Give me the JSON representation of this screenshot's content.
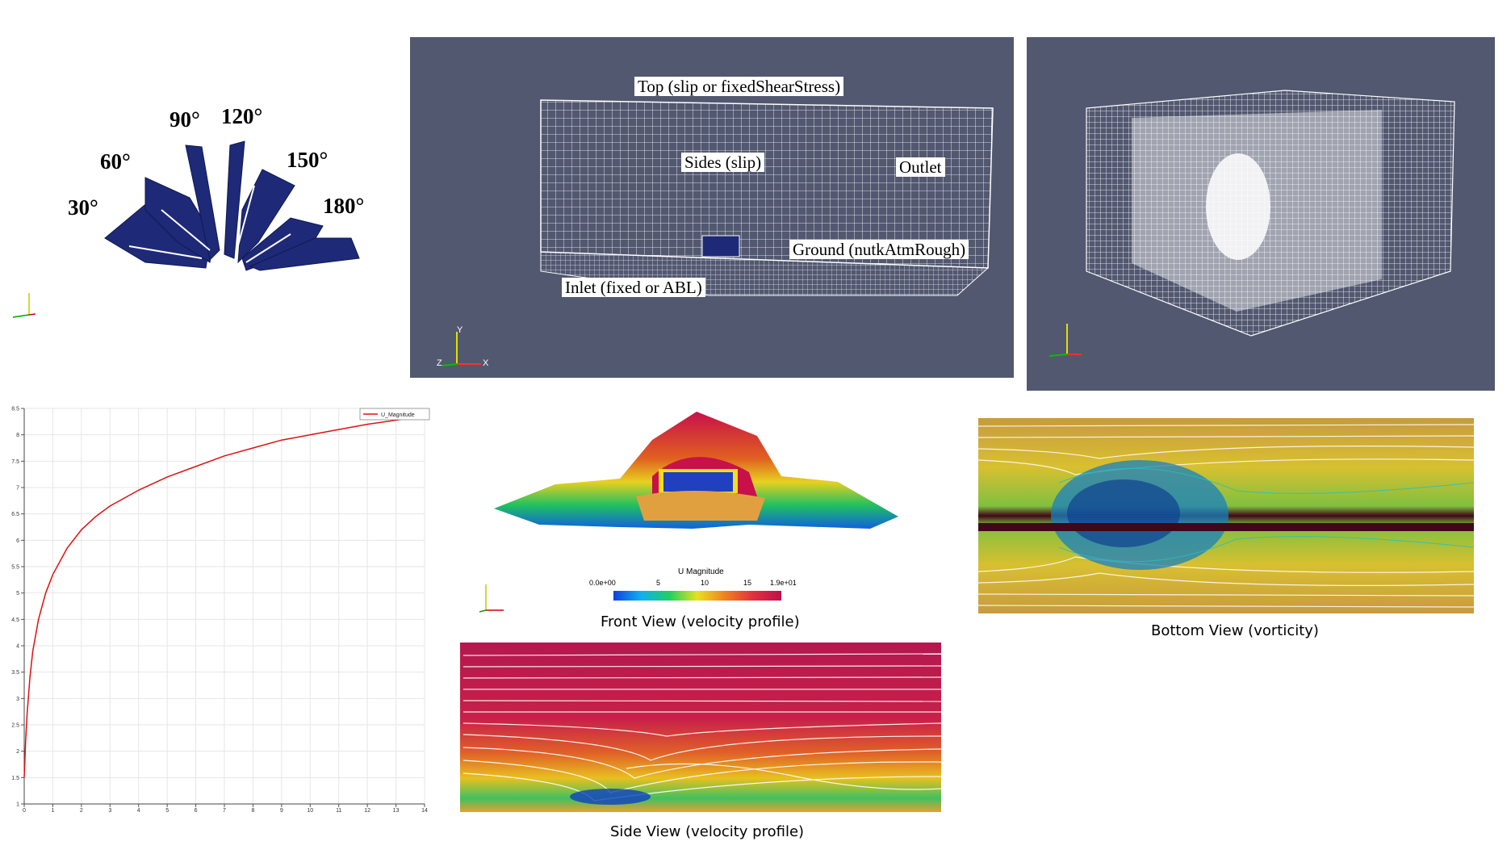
{
  "fan": {
    "angles": [
      "30°",
      "60°",
      "90°",
      "120°",
      "150°",
      "180°"
    ],
    "color": "#1e2a78"
  },
  "mesh": {
    "labels": {
      "top": "Top (slip or fixedShearStress)",
      "sides": "Sides (slip)",
      "outlet": "Outlet",
      "ground": "Ground (nutkAtmRough)",
      "inlet": "Inlet (fixed or ABL)"
    },
    "axes": {
      "y": "Y",
      "z": "Z",
      "x": "X"
    },
    "background": "#525870"
  },
  "profile_plot": {
    "legend": "U_Magnitude",
    "line_color": "#e01010"
  },
  "chart_data": {
    "type": "line",
    "title": "",
    "xlabel": "",
    "ylabel": "",
    "xlim": [
      0,
      14
    ],
    "ylim": [
      1,
      8.5
    ],
    "x_ticks": [
      "0",
      "1",
      "2",
      "3",
      "4",
      "5",
      "6",
      "7",
      "8",
      "9",
      "10",
      "11",
      "12",
      "13",
      "14"
    ],
    "y_ticks": [
      "1",
      "1.5",
      "2",
      "2.5",
      "3",
      "3.5",
      "4",
      "4.5",
      "5",
      "5.5",
      "6",
      "6.5",
      "7",
      "7.5",
      "8",
      "8.5"
    ],
    "grid": true,
    "legend_position": "top-right",
    "series": [
      {
        "name": "U_Magnitude",
        "x": [
          0.0,
          0.05,
          0.1,
          0.2,
          0.3,
          0.5,
          0.75,
          1,
          1.5,
          2,
          2.5,
          3,
          4,
          5,
          6,
          7,
          8,
          9,
          10,
          11,
          12,
          13.3
        ],
        "y": [
          1.5,
          2.2,
          2.7,
          3.4,
          3.9,
          4.5,
          5.0,
          5.35,
          5.85,
          6.2,
          6.45,
          6.65,
          6.95,
          7.2,
          7.4,
          7.6,
          7.75,
          7.9,
          8.0,
          8.1,
          8.2,
          8.3
        ]
      }
    ]
  },
  "colorbar": {
    "title": "U Magnitude",
    "ticks": [
      "0.0e+00",
      "5",
      "10",
      "15",
      "1.9e+01"
    ]
  },
  "captions": {
    "front": "Front View (velocity profile)",
    "side": "Side View (velocity profile)",
    "bottom": "Bottom View (vorticity)"
  }
}
